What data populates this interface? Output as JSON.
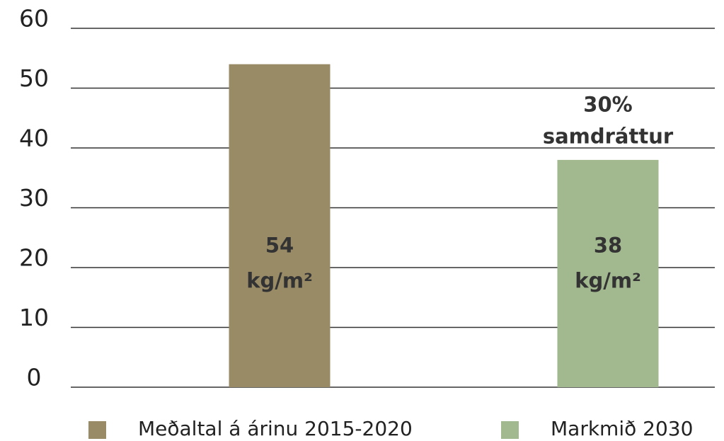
{
  "chart_data": {
    "type": "bar",
    "categories": [
      null,
      null
    ],
    "series": [
      {
        "name": "Meðaltal á árinu 2015-2020",
        "color": "#9a8b67",
        "values": [
          54,
          null
        ],
        "value_labels": [
          "54 kg/m²",
          null
        ]
      },
      {
        "name": "Markmið 2030",
        "color": "#a2b98f",
        "values": [
          null,
          38
        ],
        "value_labels": [
          null,
          "38 kg/m²"
        ]
      }
    ],
    "annotation": "30% samdráttur",
    "ylim": [
      0,
      60
    ],
    "yticks": [
      0,
      10,
      20,
      30,
      40,
      50,
      60
    ],
    "grid": true
  }
}
